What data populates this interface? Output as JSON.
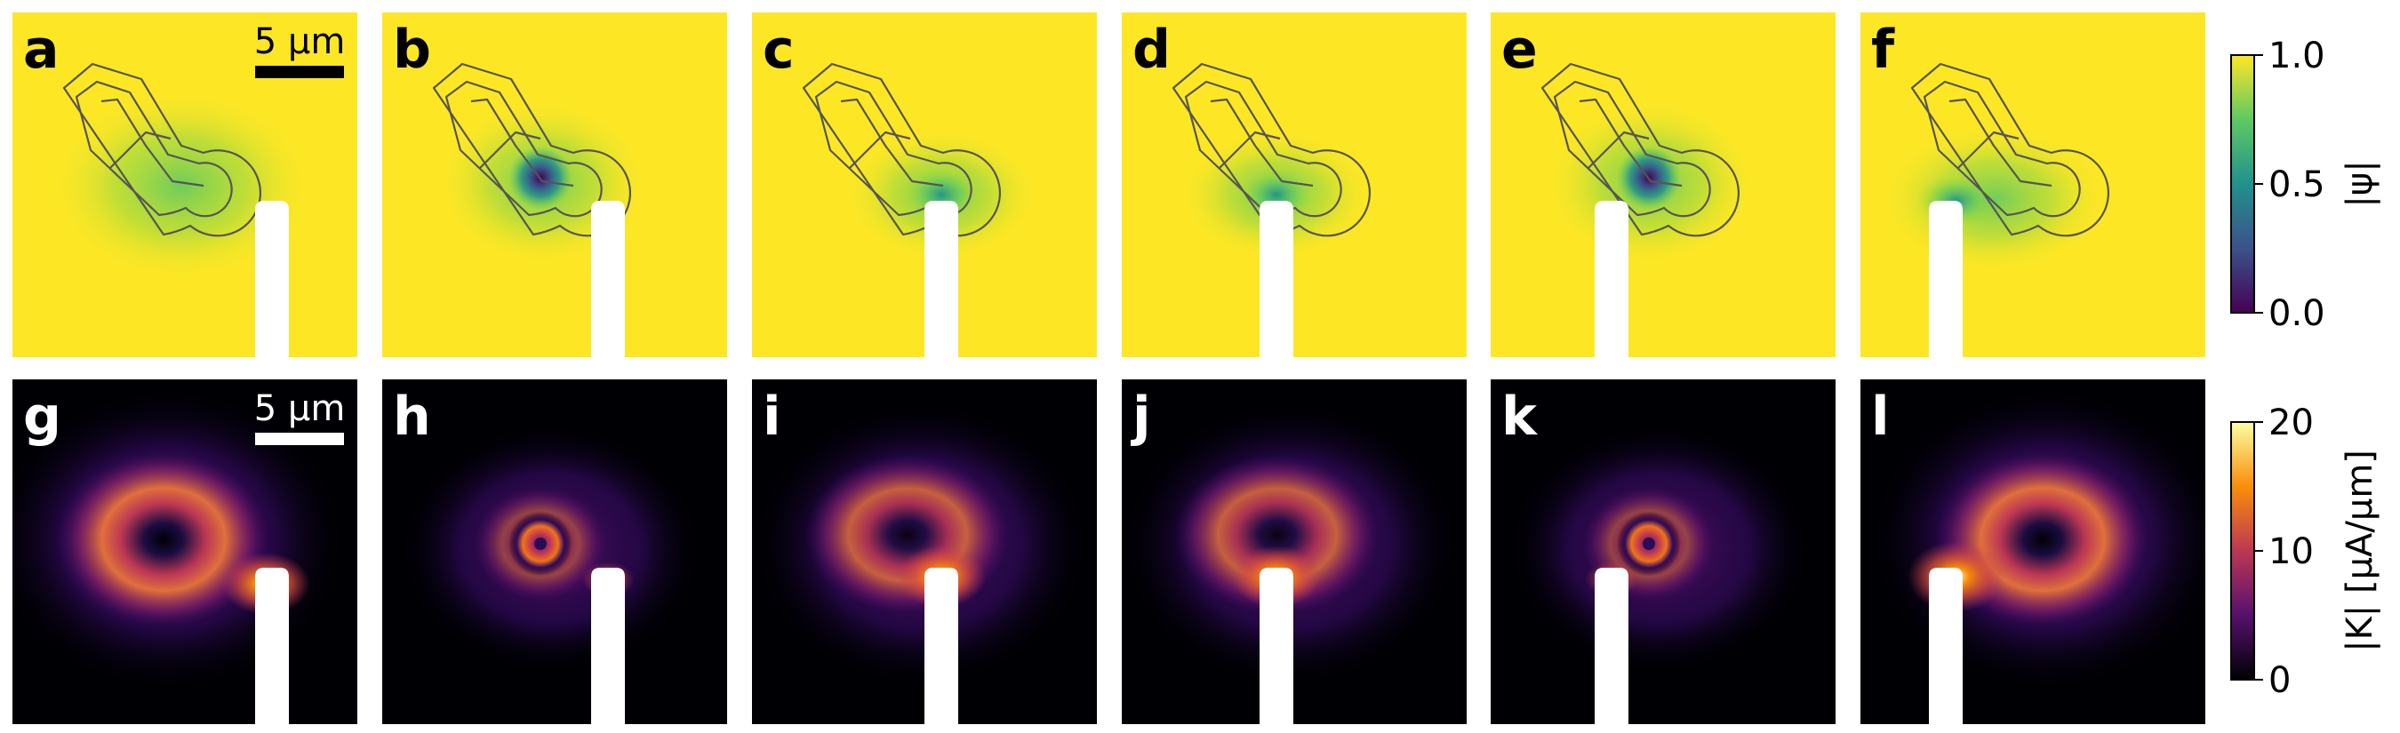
{
  "figure": {
    "panels": [
      {
        "id": "a",
        "row": "psi",
        "state": "center_low",
        "vortex": false,
        "tip": 1
      },
      {
        "id": "b",
        "row": "psi",
        "state": "vortex",
        "vortex": true,
        "tip": 2
      },
      {
        "id": "c",
        "row": "psi",
        "state": "tip_top",
        "vortex": false,
        "tip": 3
      },
      {
        "id": "d",
        "row": "psi",
        "state": "tip_top",
        "vortex": false,
        "tip": 4
      },
      {
        "id": "e",
        "row": "psi",
        "state": "vortex",
        "vortex": true,
        "tip": 5
      },
      {
        "id": "f",
        "row": "psi",
        "state": "tip_left",
        "vortex": false,
        "tip": 6
      },
      {
        "id": "g",
        "row": "K",
        "state": "ring_tip_right",
        "tip": 1
      },
      {
        "id": "h",
        "row": "K",
        "state": "vortex_ring",
        "tip": 2
      },
      {
        "id": "i",
        "row": "K",
        "state": "tip_top",
        "tip": 3
      },
      {
        "id": "j",
        "row": "K",
        "state": "tip_top",
        "tip": 4
      },
      {
        "id": "k",
        "row": "K",
        "state": "vortex_ring",
        "tip": 5
      },
      {
        "id": "l",
        "row": "K",
        "state": "ring_tip_left",
        "tip": 6
      }
    ],
    "scalebar_text": "5 μm",
    "colorbars": [
      {
        "label": "|ψ|",
        "ticks": [
          "1.0",
          "0.5",
          "0.0"
        ],
        "colormap": "viridis",
        "range": [
          0.0,
          1.0
        ]
      },
      {
        "label": "|K| [μA/μm]",
        "ticks": [
          "20",
          "10",
          "0"
        ],
        "colormap": "inferno",
        "range": [
          0,
          20
        ]
      }
    ],
    "colors": {
      "psi_bg": "#fde725",
      "k_bg": "#000004",
      "probe": "#ffffff",
      "outline": "#555555"
    }
  }
}
